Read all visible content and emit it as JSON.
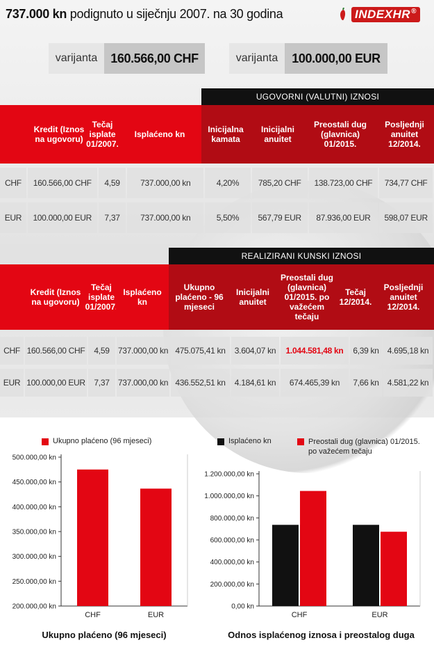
{
  "header": {
    "title_bold": "737.000 kn",
    "title_rest": " podignuto u siječnju 2007. na 30 godina",
    "logo_text": "INDEXHR",
    "logo_mark": "®"
  },
  "variants": [
    {
      "label": "varijanta",
      "value": "160.566,00 CHF"
    },
    {
      "label": "varijanta",
      "value": "100.000,00 EUR"
    }
  ],
  "table1": {
    "section_title": "UGOVORNI (VALUTNI) IZNOSI",
    "headers": [
      "",
      "Kredit (Iznos na ugovoru)",
      "Tečaj isplate 01/2007.",
      "Isplaćeno kn",
      "Inicijalna kamata",
      "Inicijalni anuitet",
      "Preostali dug (glavnica) 01/2015.",
      "Posljednji anuitet 12/2014."
    ],
    "rows": [
      [
        "CHF",
        "160.566,00 CHF",
        "4,59",
        "737.000,00 kn",
        "4,20%",
        "785,20 CHF",
        "138.723,00 CHF",
        "734,77 CHF"
      ],
      [
        "EUR",
        "100.000,00 EUR",
        "7,37",
        "737.000,00 kn",
        "5,50%",
        "567,79 EUR",
        "87.936,00 EUR",
        "598,07 EUR"
      ]
    ]
  },
  "table2": {
    "section_title": "REALIZIRANI KUNSKI IZNOSI",
    "headers": [
      "",
      "Kredit (Iznos na ugovoru)",
      "Tečaj isplate 01/2007.",
      "Isplaćeno kn",
      "Ukupno plaćeno - 96 mjeseci",
      "Inicijalni anuitet",
      "Preostali dug (glavnica) 01/2015. po važećem tečaju",
      "Tečaj 12/2014.",
      "Posljednji anuitet 12/2014."
    ],
    "rows": [
      [
        "CHF",
        "160.566,00 CHF",
        "4,59",
        "737.000,00 kn",
        "475.075,41 kn",
        "3.604,07 kn",
        "1.044.581,48 kn",
        "6,39 kn",
        "4.695,18 kn"
      ],
      [
        "EUR",
        "100.000,00 EUR",
        "7,37",
        "737.000,00 kn",
        "436.552,51 kn",
        "4.184,61 kn",
        "674.465,39 kn",
        "7,66 kn",
        "4.581,22 kn"
      ]
    ]
  },
  "colors": {
    "red": "#e30613",
    "dark_red": "#b10c14",
    "black": "#111111"
  },
  "chart_data": [
    {
      "type": "bar",
      "title": "Ukupno plaćeno (96 mjeseci)",
      "categories": [
        "CHF",
        "EUR"
      ],
      "series": [
        {
          "name": "Ukupno plaćeno (96 mjeseci)",
          "values": [
            475075.41,
            436552.51
          ],
          "color": "#e30613"
        }
      ],
      "ylim": [
        200000,
        500000
      ],
      "yticks": [
        200000,
        250000,
        300000,
        350000,
        400000,
        450000,
        500000
      ],
      "ytick_labels": [
        "200.000,00 kn",
        "250.000,00 kn",
        "300.000,00 kn",
        "350.000,00 kn",
        "400.000,00 kn",
        "450.000,00 kn",
        "500.000,00 kn"
      ],
      "legend": "top",
      "grid": false
    },
    {
      "type": "bar",
      "title": "Odnos isplaćenog iznosa i preostalog duga",
      "categories": [
        "CHF",
        "EUR"
      ],
      "series": [
        {
          "name": "Isplaćeno kn",
          "values": [
            737000,
            737000
          ],
          "color": "#111111"
        },
        {
          "name": "Preostali dug (glavnica) 01/2015. po važećem tečaju",
          "values": [
            1044581.48,
            674465.39
          ],
          "color": "#e30613"
        }
      ],
      "ylim": [
        0,
        1200000
      ],
      "yticks": [
        0,
        200000,
        400000,
        600000,
        800000,
        1000000,
        1200000
      ],
      "ytick_labels": [
        "0,00 kn",
        "200.000,00 kn",
        "400.000,00 kn",
        "600.000,00 kn",
        "800.000,00 kn",
        "1.000.000,00 kn",
        "1.200.000,00 kn"
      ],
      "legend": "top",
      "grid": false
    }
  ]
}
